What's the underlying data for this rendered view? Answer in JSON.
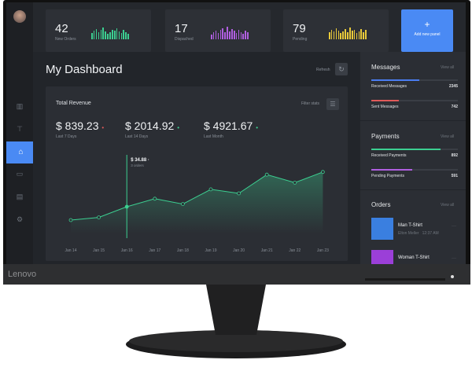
{
  "brand": "Lenovo",
  "stats": [
    {
      "value": "42",
      "label": "New Orders",
      "color": "#3ccf91",
      "bars": [
        8,
        11,
        13,
        9,
        12,
        15,
        10,
        7,
        9,
        12,
        11,
        14,
        10,
        8,
        12,
        9,
        7
      ]
    },
    {
      "value": "17",
      "label": "Dispached",
      "color": "#b05fe0",
      "bars": [
        6,
        9,
        11,
        8,
        12,
        14,
        9,
        16,
        10,
        13,
        11,
        8,
        12,
        9,
        7,
        11,
        9
      ]
    },
    {
      "value": "79",
      "label": "Pending",
      "color": "#e8c93a",
      "bars": [
        9,
        12,
        10,
        14,
        11,
        8,
        10,
        13,
        9,
        15,
        11,
        12,
        8,
        10,
        13,
        9,
        12
      ]
    }
  ],
  "add_panel": {
    "icon": "plus-icon",
    "label": "Add new panel",
    "color": "#4a8af4"
  },
  "page_title": "My Dashboard",
  "refresh_label": "Refresh",
  "revenue": {
    "title": "Total Revenue",
    "filter_label": "Filter stats",
    "kpis": [
      {
        "value": "$ 839.23",
        "label": "Last 7 Days",
        "dot": "#e05a5a"
      },
      {
        "value": "$ 2014.92",
        "label": "Last 14 Days",
        "dot": "#3ccf91"
      },
      {
        "value": "$ 4921.67",
        "label": "Last Month",
        "dot": "#3ccf91"
      }
    ],
    "tooltip": {
      "value": "$ 34.88",
      "sub": "3 orders"
    }
  },
  "chart_data": {
    "type": "area",
    "categories": [
      "Jan 14",
      "Jan 15",
      "Jan 16",
      "Jan 17",
      "Jan 18",
      "Jan 19",
      "Jan 20",
      "Jan 21",
      "Jan 22",
      "Jan 23"
    ],
    "values": [
      10,
      12,
      20,
      26,
      22,
      33,
      30,
      44,
      38,
      46
    ],
    "ylim": [
      0,
      60
    ],
    "grid": false,
    "highlight_index": 2,
    "color": "#3ccf91"
  },
  "messages": {
    "title": "Messages",
    "view_all": "View all",
    "items": [
      {
        "label": "Received Messages",
        "value": "2345",
        "fill": 0.55,
        "color": "#4a7df0"
      },
      {
        "label": "Sent Messages",
        "value": "742",
        "fill": 0.32,
        "color": "#e05a5a"
      }
    ]
  },
  "payments": {
    "title": "Payments",
    "view_all": "View all",
    "items": [
      {
        "label": "Received Payments",
        "value": "892",
        "fill": 0.8,
        "color": "#3ccf91"
      },
      {
        "label": "Pending Payments",
        "value": "591",
        "fill": 0.47,
        "color": "#b05fe0"
      }
    ]
  },
  "orders": {
    "title": "Orders",
    "view_all": "View all",
    "items": [
      {
        "name": "Man T-Shirt",
        "meta": "Elton Meller   12:37 AM",
        "thumb": "#3a7fe0"
      },
      {
        "name": "Woman T-Shirt",
        "meta": "",
        "thumb": "#9b3fd8"
      }
    ]
  }
}
